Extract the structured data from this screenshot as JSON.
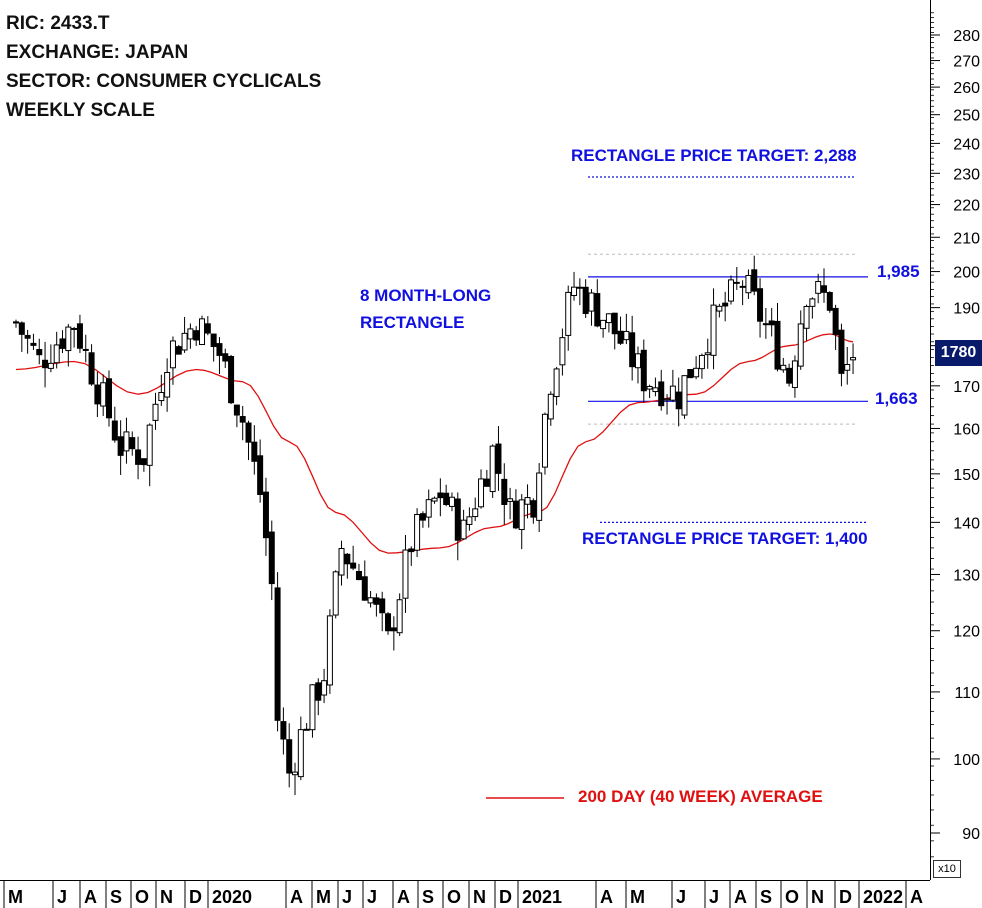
{
  "header": {
    "ric": "RIC: 2433.T",
    "exchange": "EXCHANGE: JAPAN",
    "sector": "SECTOR: CONSUMER CYCLICALS",
    "scale": "WEEKLY SCALE"
  },
  "annotations": {
    "target_up": "RECTANGLE PRICE TARGET: 2,288",
    "target_down": "RECTANGLE PRICE TARGET: 1,400",
    "pattern_line1": "8 MONTH-LONG",
    "pattern_line2": "RECTANGLE",
    "upper_level": "1,985",
    "lower_level": "1,663",
    "ma_legend": "200 DAY (40 WEEK) AVERAGE",
    "last_price": "1780",
    "multiplier": "x10"
  },
  "colors": {
    "up_candle": "#ffffff",
    "down_candle": "#000000",
    "moving_average": "#e01010",
    "rectangle_lines": "#1010e0",
    "price_box": "#0a1a6a"
  },
  "chart_data": {
    "type": "candlestick",
    "yscale": "log",
    "ylim": [
      86,
      292
    ],
    "yticks": [
      90,
      100,
      110,
      120,
      130,
      140,
      150,
      160,
      170,
      180,
      190,
      200,
      210,
      220,
      230,
      240,
      250,
      260,
      270,
      280
    ],
    "xticks": [
      "M",
      "J",
      "A",
      "S",
      "O",
      "N",
      "D",
      "2020",
      "A",
      "M",
      "J",
      "J",
      "A",
      "S",
      "O",
      "N",
      "D",
      "2021",
      "A",
      "M",
      "J",
      "J",
      "A",
      "S",
      "O",
      "N",
      "D",
      "2022",
      "A"
    ],
    "x_start": "2019-05-06",
    "x_end": "2022-04-25",
    "levels": {
      "rectangle_top": 198.5,
      "rectangle_bottom": 166.3,
      "target_up": 228.8,
      "target_down": 140.0,
      "dotted_upper": 205,
      "dotted_lower": 161
    },
    "ohlc_anchor_closes": [
      {
        "x": "2019-05-06",
        "y": 186
      },
      {
        "x": "2019-06-03",
        "y": 176
      },
      {
        "x": "2019-07-15",
        "y": 186
      },
      {
        "x": "2019-08-12",
        "y": 170
      },
      {
        "x": "2019-09-09",
        "y": 156
      },
      {
        "x": "2019-10-07",
        "y": 154
      },
      {
        "x": "2019-11-04",
        "y": 178
      },
      {
        "x": "2019-12-09",
        "y": 186
      },
      {
        "x": "2020-01-06",
        "y": 178
      },
      {
        "x": "2020-02-03",
        "y": 162
      },
      {
        "x": "2020-02-24",
        "y": 146
      },
      {
        "x": "2020-03-09",
        "y": 128
      },
      {
        "x": "2020-03-16",
        "y": 106
      },
      {
        "x": "2020-03-30",
        "y": 98
      },
      {
        "x": "2020-04-20",
        "y": 106
      },
      {
        "x": "2020-05-11",
        "y": 113
      },
      {
        "x": "2020-06-01",
        "y": 135
      },
      {
        "x": "2020-06-29",
        "y": 128
      },
      {
        "x": "2020-07-27",
        "y": 118
      },
      {
        "x": "2020-08-24",
        "y": 136
      },
      {
        "x": "2020-09-28",
        "y": 146
      },
      {
        "x": "2020-10-26",
        "y": 138
      },
      {
        "x": "2020-11-30",
        "y": 155
      },
      {
        "x": "2020-12-21",
        "y": 142
      },
      {
        "x": "2021-01-18",
        "y": 145
      },
      {
        "x": "2021-02-08",
        "y": 172
      },
      {
        "x": "2021-03-08",
        "y": 196
      },
      {
        "x": "2021-04-19",
        "y": 186
      },
      {
        "x": "2021-05-31",
        "y": 172
      },
      {
        "x": "2021-07-12",
        "y": 168
      },
      {
        "x": "2021-08-23",
        "y": 186
      },
      {
        "x": "2021-09-27",
        "y": 197
      },
      {
        "x": "2021-11-01",
        "y": 182
      },
      {
        "x": "2021-11-22",
        "y": 172
      },
      {
        "x": "2021-12-13",
        "y": 195
      },
      {
        "x": "2022-01-10",
        "y": 192
      },
      {
        "x": "2022-01-24",
        "y": 171
      },
      {
        "x": "2022-02-07",
        "y": 178
      }
    ],
    "ma_anchor": [
      {
        "x": "2019-05-06",
        "y": 174
      },
      {
        "x": "2019-07-15",
        "y": 176
      },
      {
        "x": "2019-09-30",
        "y": 168
      },
      {
        "x": "2019-12-09",
        "y": 174
      },
      {
        "x": "2020-02-03",
        "y": 171
      },
      {
        "x": "2020-03-30",
        "y": 157
      },
      {
        "x": "2020-05-25",
        "y": 142
      },
      {
        "x": "2020-07-27",
        "y": 134
      },
      {
        "x": "2020-09-28",
        "y": 135
      },
      {
        "x": "2020-11-30",
        "y": 139
      },
      {
        "x": "2021-01-25",
        "y": 142
      },
      {
        "x": "2021-03-22",
        "y": 157
      },
      {
        "x": "2021-05-24",
        "y": 166
      },
      {
        "x": "2021-08-02",
        "y": 168
      },
      {
        "x": "2021-10-04",
        "y": 176
      },
      {
        "x": "2021-11-22",
        "y": 180
      },
      {
        "x": "2022-01-10",
        "y": 183
      },
      {
        "x": "2022-02-07",
        "y": 181
      }
    ],
    "series": [
      {
        "name": "200 DAY (40 WEEK) AVERAGE"
      }
    ]
  }
}
